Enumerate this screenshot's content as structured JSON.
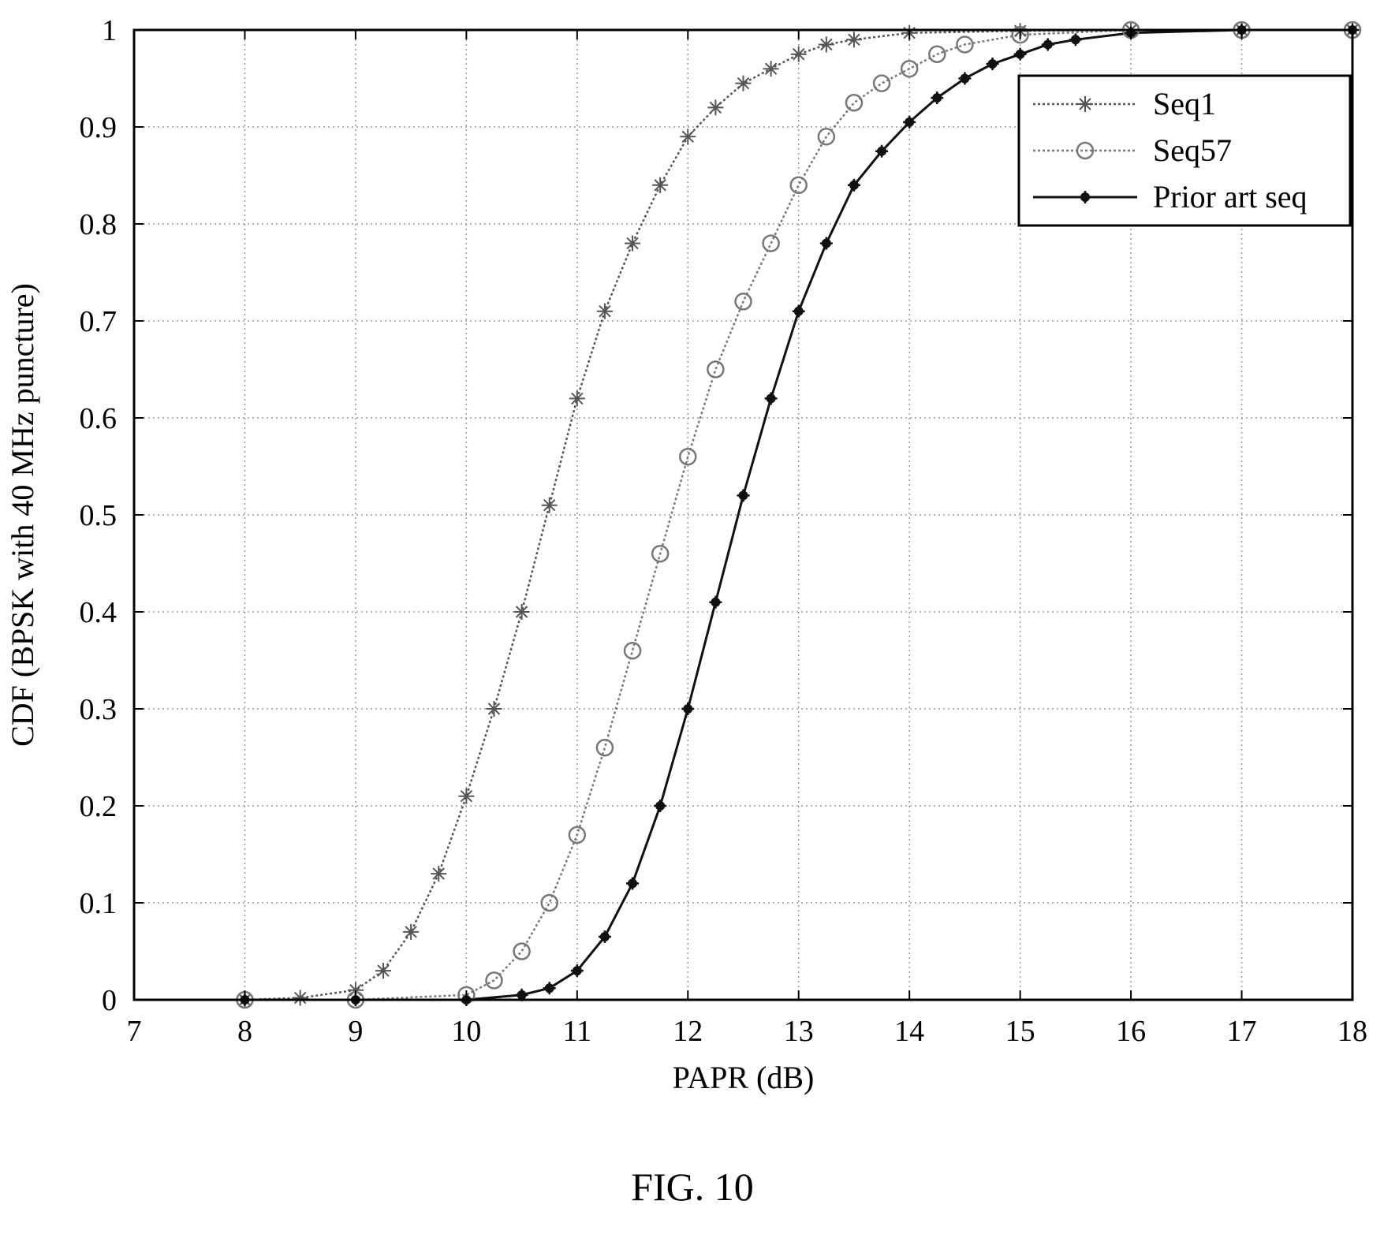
{
  "chart_data": {
    "type": "line",
    "title": "",
    "xlabel": "PAPR (dB)",
    "ylabel": "CDF (BPSK with 40 MHz puncture)",
    "caption": "FIG. 10",
    "xlim": [
      7,
      18
    ],
    "ylim": [
      0,
      1
    ],
    "xticks": [
      7,
      8,
      9,
      10,
      11,
      12,
      13,
      14,
      15,
      16,
      17,
      18
    ],
    "yticks": [
      0,
      0.1,
      0.2,
      0.3,
      0.4,
      0.5,
      0.6,
      0.7,
      0.8,
      0.9,
      1
    ],
    "ytick_labels": [
      "0",
      "0.1",
      "0.2",
      "0.3",
      "0.4",
      "0.5",
      "0.6",
      "0.7",
      "0.8",
      "0.9",
      "1"
    ],
    "grid": true,
    "legend_position": "top-right",
    "series": [
      {
        "name": "Seq1",
        "marker": "asterisk",
        "color": "#555555",
        "x": [
          8.0,
          8.5,
          9.0,
          9.25,
          9.5,
          9.75,
          10.0,
          10.25,
          10.5,
          10.75,
          11.0,
          11.25,
          11.5,
          11.75,
          12.0,
          12.25,
          12.5,
          12.75,
          13.0,
          13.25,
          13.5,
          14.0,
          15.0,
          16.0,
          17.0,
          18.0
        ],
        "y": [
          0.0,
          0.002,
          0.01,
          0.03,
          0.07,
          0.13,
          0.21,
          0.3,
          0.4,
          0.51,
          0.62,
          0.71,
          0.78,
          0.84,
          0.89,
          0.92,
          0.945,
          0.96,
          0.975,
          0.985,
          0.99,
          0.997,
          0.999,
          1.0,
          1.0,
          1.0
        ]
      },
      {
        "name": "Seq57",
        "marker": "circle",
        "color": "#777777",
        "x": [
          8.0,
          9.0,
          10.0,
          10.25,
          10.5,
          10.75,
          11.0,
          11.25,
          11.5,
          11.75,
          12.0,
          12.25,
          12.5,
          12.75,
          13.0,
          13.25,
          13.5,
          13.75,
          14.0,
          14.25,
          14.5,
          15.0,
          16.0,
          17.0,
          18.0
        ],
        "y": [
          0.0,
          0.0,
          0.005,
          0.02,
          0.05,
          0.1,
          0.17,
          0.26,
          0.36,
          0.46,
          0.56,
          0.65,
          0.72,
          0.78,
          0.84,
          0.89,
          0.925,
          0.945,
          0.96,
          0.975,
          0.985,
          0.995,
          1.0,
          1.0,
          1.0
        ]
      },
      {
        "name": "Prior art seq",
        "marker": "star",
        "color": "#111111",
        "x": [
          8.0,
          9.0,
          10.0,
          10.5,
          10.75,
          11.0,
          11.25,
          11.5,
          11.75,
          12.0,
          12.25,
          12.5,
          12.75,
          13.0,
          13.25,
          13.5,
          13.75,
          14.0,
          14.25,
          14.5,
          14.75,
          15.0,
          15.25,
          15.5,
          16.0,
          17.0,
          18.0
        ],
        "y": [
          0.0,
          0.0,
          0.0,
          0.005,
          0.012,
          0.03,
          0.065,
          0.12,
          0.2,
          0.3,
          0.41,
          0.52,
          0.62,
          0.71,
          0.78,
          0.84,
          0.875,
          0.905,
          0.93,
          0.95,
          0.965,
          0.975,
          0.985,
          0.99,
          0.997,
          1.0,
          1.0
        ]
      }
    ]
  }
}
